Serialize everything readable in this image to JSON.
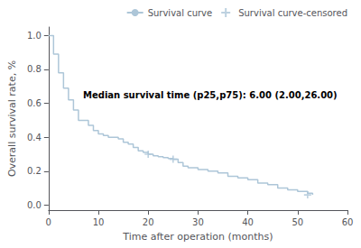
{
  "chart_data": {
    "type": "line",
    "xlabel": "Time after operation (months)",
    "ylabel": "Overall survival rate, %",
    "annotation": "Median survival time (p25,p75): 6.00 (2.00,26.00)",
    "xlim": [
      0,
      60
    ],
    "ylim": [
      -0.03,
      1.05
    ],
    "xticks": [
      0,
      10,
      20,
      30,
      40,
      50,
      60
    ],
    "yticks": [
      {
        "value": 0.0,
        "label": "0.0"
      },
      {
        "value": 0.2,
        "label": "0.2"
      },
      {
        "value": 0.4,
        "label": "0.4"
      },
      {
        "value": 0.6,
        "label": "0.6"
      },
      {
        "value": 0.8,
        "label": "0.8"
      },
      {
        "value": 1.0,
        "label": "1.0"
      }
    ],
    "grid": false,
    "legend": "upper right",
    "series": [
      {
        "name": "Survival curve",
        "type": "line",
        "line_style": "step",
        "color": "#adc6d8",
        "x": [
          0,
          1,
          1,
          2,
          2,
          3,
          3,
          4,
          4,
          5,
          5,
          6,
          6,
          7,
          8,
          9,
          10,
          11,
          12,
          13,
          14,
          15,
          16,
          17,
          18,
          19,
          20,
          21,
          22,
          23,
          24,
          25,
          26,
          27,
          28,
          30,
          32,
          34,
          36,
          38,
          40,
          42,
          44,
          46,
          48,
          50,
          52,
          53
        ],
        "values": [
          1.0,
          1.0,
          0.89,
          0.89,
          0.78,
          0.78,
          0.69,
          0.69,
          0.62,
          0.62,
          0.56,
          0.56,
          0.5,
          0.5,
          0.47,
          0.44,
          0.42,
          0.41,
          0.4,
          0.4,
          0.39,
          0.37,
          0.36,
          0.34,
          0.32,
          0.31,
          0.3,
          0.29,
          0.285,
          0.28,
          0.275,
          0.27,
          0.25,
          0.23,
          0.22,
          0.21,
          0.2,
          0.19,
          0.17,
          0.16,
          0.15,
          0.13,
          0.12,
          0.1,
          0.09,
          0.08,
          0.07,
          0.06
        ]
      },
      {
        "name": "Survival curve-censored",
        "type": "scatter",
        "marker": "+",
        "color": "#adc6d8",
        "x": [
          20,
          25,
          52
        ],
        "values": [
          0.3,
          0.27,
          0.06
        ]
      }
    ]
  }
}
